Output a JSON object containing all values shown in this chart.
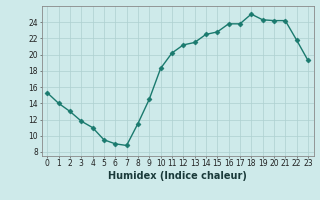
{
  "x": [
    0,
    1,
    2,
    3,
    4,
    5,
    6,
    7,
    8,
    9,
    10,
    11,
    12,
    13,
    14,
    15,
    16,
    17,
    18,
    19,
    20,
    21,
    22,
    23
  ],
  "y": [
    15.3,
    14.0,
    13.0,
    11.8,
    11.0,
    9.5,
    9.0,
    8.8,
    11.5,
    14.5,
    18.3,
    20.2,
    21.2,
    21.5,
    22.5,
    22.8,
    23.8,
    23.8,
    25.0,
    24.3,
    24.2,
    24.2,
    21.8,
    19.3
  ],
  "line_color": "#1a7a6e",
  "marker": "D",
  "marker_size": 2.5,
  "bg_color": "#ceeaea",
  "grid_color": "#aed0d0",
  "xlabel": "Humidex (Indice chaleur)",
  "xlim": [
    -0.5,
    23.5
  ],
  "ylim": [
    7.5,
    26
  ],
  "yticks": [
    8,
    10,
    12,
    14,
    16,
    18,
    20,
    22,
    24
  ],
  "xticks": [
    0,
    1,
    2,
    3,
    4,
    5,
    6,
    7,
    8,
    9,
    10,
    11,
    12,
    13,
    14,
    15,
    16,
    17,
    18,
    19,
    20,
    21,
    22,
    23
  ],
  "tick_fontsize": 5.5,
  "xlabel_fontsize": 7,
  "line_width": 1.0
}
